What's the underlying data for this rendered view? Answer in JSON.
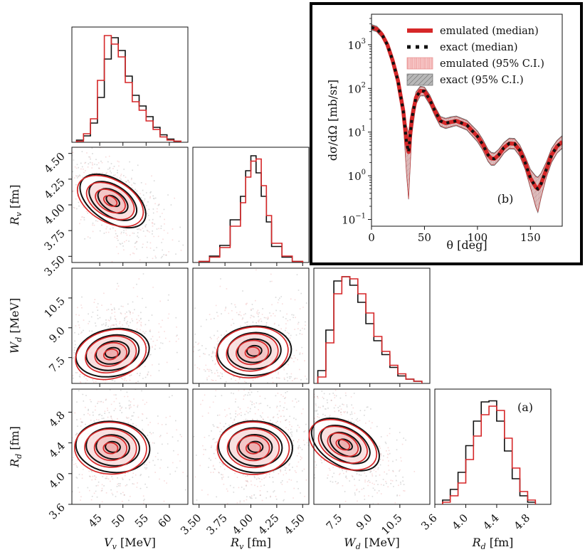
{
  "colors": {
    "emulated": "#d62728",
    "exact": "#111111",
    "emulated_band": "#f4b4b4",
    "exact_band": "#999999"
  },
  "chart_data": [
    {
      "type": "corner",
      "panel_tag": "(a)",
      "parameters": [
        {
          "key": "Vv",
          "label": "V_v [MeV]",
          "label_main": "V",
          "label_sub": "v",
          "label_unit": " [MeV]",
          "range": [
            39,
            64
          ],
          "ticks": [
            45,
            50,
            55,
            60
          ],
          "tick_labels": [
            "45",
            "50",
            "55",
            "60"
          ]
        },
        {
          "key": "Rv",
          "label": "R_v [fm]",
          "label_main": "R",
          "label_sub": "v",
          "label_unit": " [fm]",
          "range": [
            3.44,
            4.56
          ],
          "ticks": [
            3.5,
            3.75,
            4.0,
            4.25,
            4.5
          ],
          "tick_labels": [
            "3.50",
            "3.75",
            "4.00",
            "4.25",
            "4.50"
          ]
        },
        {
          "key": "Wd",
          "label": "W_d [MeV]",
          "label_main": "W",
          "label_sub": "d",
          "label_unit": " [MeV]",
          "range": [
            6.2,
            12.0
          ],
          "ticks": [
            7.5,
            9.0,
            10.5
          ],
          "tick_labels": [
            "7.5",
            "9.0",
            "10.5"
          ]
        },
        {
          "key": "Rd",
          "label": "R_d [fm]",
          "label_main": "R",
          "label_sub": "d",
          "label_unit": " [fm]",
          "range": [
            3.6,
            5.1
          ],
          "ticks": [
            3.6,
            4.0,
            4.4,
            4.8
          ],
          "tick_labels": [
            "3.6",
            "4.0",
            "4.4",
            "4.8"
          ]
        }
      ],
      "marginals": {
        "Vv": {
          "bin_edges": [
            40,
            41.5,
            43,
            44.5,
            46,
            47.5,
            49,
            50.5,
            52,
            53.5,
            55,
            56.5,
            58,
            59.5,
            61,
            62.5
          ],
          "exact": [
            0.02,
            0.06,
            0.18,
            0.42,
            0.78,
            0.98,
            0.86,
            0.62,
            0.44,
            0.34,
            0.24,
            0.14,
            0.07,
            0.03,
            0.01
          ],
          "emulated": [
            0.01,
            0.08,
            0.22,
            0.58,
            1.0,
            0.92,
            0.8,
            0.56,
            0.38,
            0.3,
            0.2,
            0.12,
            0.05,
            0.02,
            0.01
          ]
        },
        "Rv": {
          "bin_edges": [
            3.5,
            3.6,
            3.7,
            3.8,
            3.9,
            3.95,
            4.0,
            4.05,
            4.1,
            4.15,
            4.2,
            4.3,
            4.4,
            4.5
          ],
          "exact": [
            0.01,
            0.06,
            0.16,
            0.4,
            0.62,
            0.86,
            1.0,
            0.84,
            0.62,
            0.38,
            0.15,
            0.05,
            0.01
          ],
          "emulated": [
            0.01,
            0.05,
            0.14,
            0.34,
            0.56,
            0.8,
            0.95,
            0.97,
            0.72,
            0.44,
            0.18,
            0.06,
            0.01
          ]
        },
        "Wd": {
          "bin_edges": [
            6.4,
            6.8,
            7.2,
            7.6,
            8.0,
            8.4,
            8.8,
            9.2,
            9.6,
            10.0,
            10.4,
            10.8,
            11.2,
            11.6
          ],
          "exact": [
            0.12,
            0.5,
            0.96,
            1.0,
            0.92,
            0.76,
            0.56,
            0.4,
            0.27,
            0.15,
            0.07,
            0.04,
            0.02
          ],
          "emulated": [
            0.06,
            0.38,
            0.84,
            1.0,
            0.98,
            0.84,
            0.66,
            0.44,
            0.3,
            0.17,
            0.09,
            0.04,
            0.02
          ]
        },
        "Rd": {
          "bin_edges": [
            3.7,
            3.8,
            3.9,
            4.0,
            4.1,
            4.2,
            4.3,
            4.4,
            4.5,
            4.6,
            4.7,
            4.8,
            4.9
          ],
          "exact": [
            0.04,
            0.14,
            0.3,
            0.55,
            0.78,
            0.96,
            0.97,
            0.78,
            0.5,
            0.24,
            0.08,
            0.02
          ],
          "emulated": [
            0.02,
            0.08,
            0.2,
            0.42,
            0.64,
            0.84,
            0.92,
            0.88,
            0.62,
            0.34,
            0.12,
            0.04
          ]
        }
      },
      "joint_centers": {
        "Vv_Rv": [
          47.5,
          4.04
        ],
        "Vv_Wd": [
          47.5,
          7.7
        ],
        "Rv_Wd": [
          4.02,
          7.8
        ],
        "Vv_Rd": [
          47.5,
          4.34
        ],
        "Rv_Rd": [
          4.03,
          4.34
        ],
        "Wd_Rd": [
          7.7,
          4.38
        ]
      },
      "series": [
        {
          "name": "emulated",
          "color": "#d62728"
        },
        {
          "name": "exact",
          "color": "#111111"
        }
      ]
    },
    {
      "type": "line",
      "panel_tag": "(b)",
      "xlabel": "θ [deg]",
      "ylabel": "dσ/dΩ [mb/sr]",
      "xlim": [
        0,
        180
      ],
      "ylim": [
        0.07,
        5000
      ],
      "yscale": "log",
      "xticks": [
        0,
        50,
        100,
        150
      ],
      "yticks": [
        0.1,
        1,
        10,
        100,
        1000
      ],
      "ytick_labels": [
        [
          "10",
          "−1"
        ],
        [
          "10",
          "0"
        ],
        [
          "10",
          "1"
        ],
        [
          "10",
          "2"
        ],
        [
          "10",
          "3"
        ]
      ],
      "x": [
        0,
        5,
        10,
        15,
        20,
        25,
        30,
        33,
        35,
        38,
        42,
        46,
        50,
        55,
        60,
        65,
        70,
        75,
        80,
        90,
        100,
        105,
        110,
        113,
        116,
        120,
        125,
        130,
        135,
        140,
        145,
        150,
        155,
        157,
        160,
        165,
        170,
        175,
        180
      ],
      "series": [
        {
          "name": "emulated (median)",
          "y": [
            2500,
            2300,
            1700,
            1000,
            430,
            150,
            30,
            6,
            3.5,
            20,
            62,
            88,
            86,
            55,
            30,
            18,
            16,
            17,
            18,
            14.5,
            8,
            5.2,
            3,
            2.5,
            2.45,
            3,
            4.4,
            5.5,
            5.4,
            3.8,
            2,
            0.88,
            0.55,
            0.5,
            0.65,
            1.4,
            3,
            4.7,
            6
          ]
        },
        {
          "name": "exact (median)",
          "y": [
            2500,
            2300,
            1700,
            1000,
            430,
            150,
            30,
            6,
            3.5,
            20,
            62,
            88,
            86,
            55,
            30,
            18,
            16,
            17,
            18,
            14.5,
            8,
            5.2,
            3,
            2.5,
            2.45,
            3,
            4.4,
            5.5,
            5.4,
            3.8,
            2,
            0.88,
            0.55,
            0.5,
            0.65,
            1.4,
            3,
            4.7,
            6
          ]
        },
        {
          "name": "emulated (95% C.I.)",
          "y_low": [
            2250,
            2050,
            1500,
            870,
            360,
            115,
            18,
            1.2,
            0.3,
            9,
            45,
            70,
            70,
            44,
            24,
            14,
            12.5,
            13.5,
            14.5,
            11.5,
            6.2,
            4,
            2.2,
            1.8,
            1.8,
            2.3,
            3.4,
            4.3,
            4.2,
            2.9,
            1.45,
            0.55,
            0.2,
            0.15,
            0.32,
            0.95,
            2.1,
            3.4,
            4.4
          ],
          "y_high": [
            2800,
            2550,
            1900,
            1140,
            500,
            185,
            45,
            14,
            9,
            32,
            80,
            108,
            104,
            68,
            37,
            22,
            20,
            21.5,
            22.5,
            18,
            10.2,
            6.6,
            3.9,
            3.3,
            3.2,
            3.9,
            5.6,
            7,
            6.9,
            4.9,
            2.7,
            1.35,
            0.95,
            0.9,
            1.1,
            2,
            4.1,
            6.2,
            8
          ]
        },
        {
          "name": "exact (95% C.I.)",
          "y_low": [
            2250,
            2050,
            1500,
            870,
            360,
            115,
            18,
            1.2,
            0.3,
            9,
            45,
            70,
            70,
            44,
            24,
            14,
            12.5,
            13.5,
            14.5,
            11.5,
            6.2,
            4,
            2.2,
            1.8,
            1.8,
            2.3,
            3.4,
            4.3,
            4.2,
            2.9,
            1.45,
            0.55,
            0.2,
            0.15,
            0.32,
            0.95,
            2.1,
            3.4,
            4.4
          ],
          "y_high": [
            2800,
            2550,
            1900,
            1140,
            500,
            185,
            45,
            14,
            9,
            32,
            80,
            108,
            104,
            68,
            37,
            22,
            20,
            21.5,
            22.5,
            18,
            10.2,
            6.6,
            3.9,
            3.3,
            3.2,
            3.9,
            5.6,
            7,
            6.9,
            4.9,
            2.7,
            1.35,
            0.95,
            0.9,
            1.1,
            2,
            4.1,
            6.2,
            8
          ]
        }
      ],
      "legend": {
        "placement": "top-right",
        "entries": [
          "emulated (median)",
          "exact (median)",
          "emulated (95% C.I.)",
          "exact (95% C.I.)"
        ]
      }
    }
  ]
}
